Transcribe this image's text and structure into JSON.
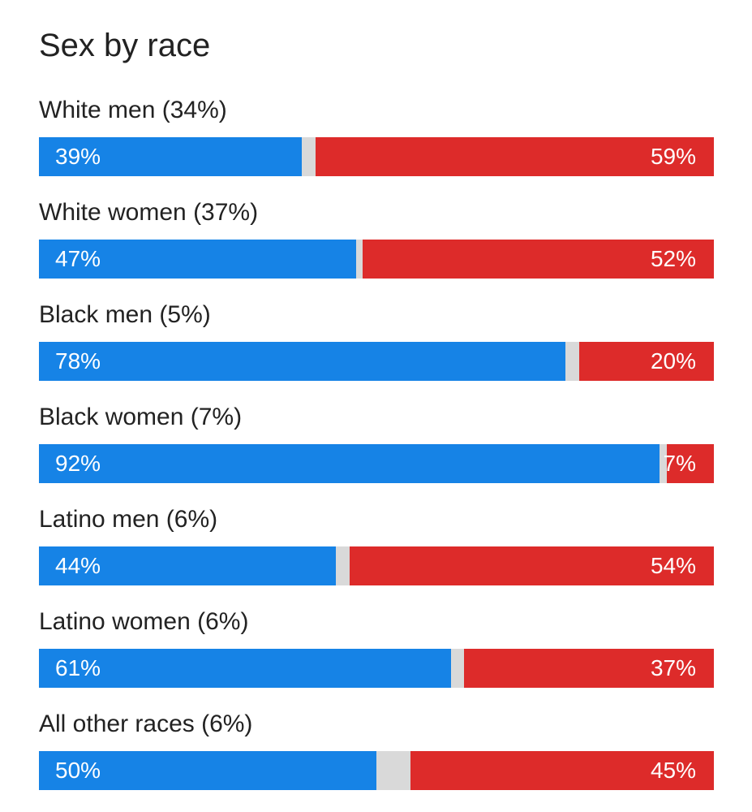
{
  "colors": {
    "dem": "#1683e6",
    "rep": "#dd2b2a",
    "other": "#d9d9d9"
  },
  "title": "Sex by race",
  "chart_data": {
    "type": "bar",
    "orientation": "horizontal",
    "stacked": true,
    "title": "Sex by race",
    "xlim": [
      0,
      100
    ],
    "categories": [
      "White men (34%)",
      "White women (37%)",
      "Black men (5%)",
      "Black women (7%)",
      "Latino men (6%)",
      "Latino women (6%)",
      "All other races (6%)"
    ],
    "series": [
      {
        "values": [
          39,
          47,
          78,
          92,
          44,
          61,
          50
        ]
      },
      {
        "values": [
          59,
          52,
          20,
          7,
          54,
          37,
          45
        ]
      }
    ],
    "dem_labels": [
      "39%",
      "47%",
      "78%",
      "92%",
      "44%",
      "61%",
      "50%"
    ],
    "rep_labels": [
      "59%",
      "52%",
      "20%",
      "7%",
      "54%",
      "37%",
      "45%"
    ]
  }
}
